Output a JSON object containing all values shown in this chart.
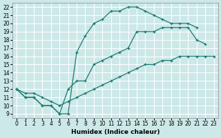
{
  "xlabel": "Humidex (Indice chaleur)",
  "bg_color": "#cce8e8",
  "grid_color": "#ffffff",
  "line_color": "#1a7a6e",
  "xlim": [
    -0.5,
    23.5
  ],
  "ylim": [
    8.5,
    22.5
  ],
  "xticks": [
    0,
    1,
    2,
    3,
    4,
    5,
    6,
    7,
    8,
    9,
    10,
    11,
    12,
    13,
    14,
    15,
    16,
    17,
    18,
    19,
    20,
    21,
    22,
    23
  ],
  "yticks": [
    9,
    10,
    11,
    12,
    13,
    14,
    15,
    16,
    17,
    18,
    19,
    20,
    21,
    22
  ],
  "line1_x": [
    0,
    1,
    2,
    3,
    4,
    5,
    6,
    7,
    8,
    9,
    10,
    11,
    12,
    13,
    14,
    15,
    16,
    17,
    18,
    19,
    20,
    21
  ],
  "line1_y": [
    12,
    11,
    11,
    10,
    10,
    9,
    9,
    16.5,
    18.5,
    20,
    20.5,
    21.5,
    21.5,
    22,
    22,
    21.5,
    21,
    20.5,
    20,
    20,
    20,
    19.5
  ],
  "line2_x": [
    0,
    1,
    2,
    3,
    4,
    5,
    6,
    7,
    8,
    9,
    10,
    11,
    12,
    13,
    14,
    15,
    16,
    17,
    18,
    19,
    20,
    21,
    22
  ],
  "line2_y": [
    12,
    11,
    11,
    10,
    10,
    9,
    12,
    13,
    13,
    15,
    15.5,
    16,
    16.5,
    17,
    19,
    19,
    19,
    19.5,
    19.5,
    19.5,
    19.5,
    18,
    17.5
  ],
  "line3_x": [
    0,
    1,
    2,
    3,
    4,
    5,
    6,
    7,
    8,
    9,
    10,
    11,
    12,
    13,
    14,
    15,
    16,
    17,
    18,
    19,
    20,
    21,
    22,
    23
  ],
  "line3_y": [
    12,
    11.5,
    11.5,
    11,
    10.5,
    10,
    10.5,
    11,
    11.5,
    12,
    12.5,
    13,
    13.5,
    14,
    14.5,
    15,
    15,
    15.5,
    15.5,
    16,
    16,
    16,
    16,
    16
  ]
}
